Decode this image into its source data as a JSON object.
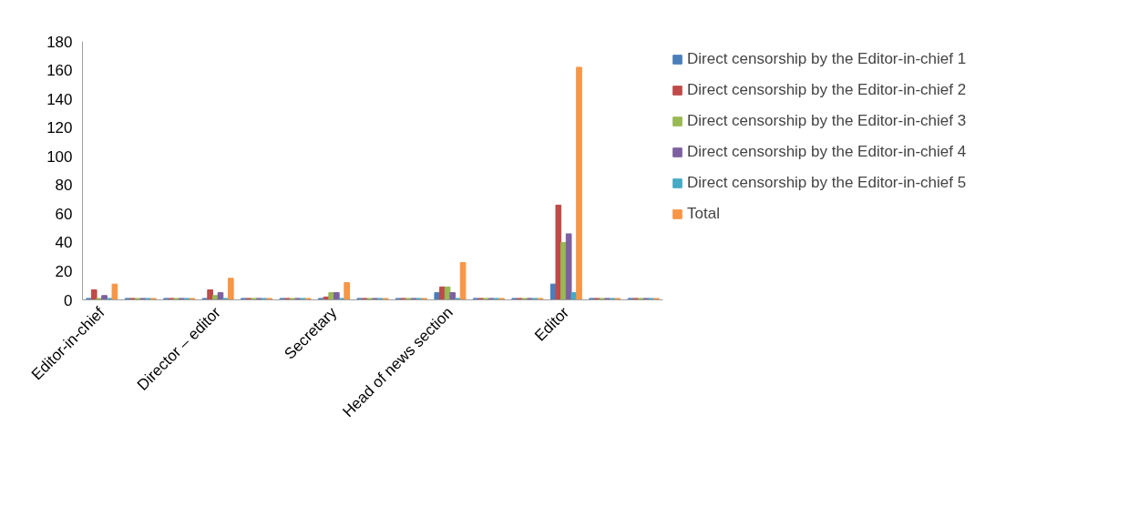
{
  "chart_data": {
    "type": "bar",
    "categories": [
      "Editor-in-chief",
      null,
      null,
      "Director – editor",
      null,
      null,
      "Secretary",
      null,
      null,
      "Head of news section",
      null,
      null,
      "Editor",
      null,
      null
    ],
    "series": [
      {
        "name": "Direct censorship by the Editor-in-chief 1",
        "color": "#4a7ebb",
        "values": [
          1,
          1,
          1,
          1,
          1,
          1,
          1,
          1,
          1,
          5,
          1,
          1,
          11,
          1,
          1
        ]
      },
      {
        "name": "Direct censorship by the Editor-in-chief 2",
        "color": "#be4b48",
        "values": [
          7,
          1,
          1,
          7,
          1,
          1,
          2,
          1,
          1,
          9,
          1,
          1,
          66,
          1,
          1
        ]
      },
      {
        "name": "Direct censorship by the Editor-in-chief 3",
        "color": "#98b954",
        "values": [
          1,
          1,
          1,
          3,
          1,
          1,
          5,
          1,
          1,
          9,
          1,
          1,
          40,
          1,
          1
        ]
      },
      {
        "name": "Direct censorship by the Editor-in-chief 4",
        "color": "#7d60a0",
        "values": [
          3,
          1,
          1,
          5,
          1,
          1,
          5,
          1,
          1,
          5,
          1,
          1,
          46,
          1,
          1
        ]
      },
      {
        "name": "Direct censorship by the Editor-in-chief 5",
        "color": "#46aac5",
        "values": [
          1,
          1,
          1,
          1,
          1,
          1,
          1,
          1,
          1,
          1,
          1,
          1,
          5,
          1,
          1
        ]
      },
      {
        "name": "Total",
        "color": "#f79646",
        "values": [
          11,
          1,
          1,
          15,
          1,
          1,
          12,
          1,
          1,
          26,
          1,
          1,
          162,
          1,
          1
        ]
      }
    ],
    "ylim": [
      0,
      180
    ],
    "yticks": [
      0,
      20,
      40,
      60,
      80,
      100,
      120,
      140,
      160,
      180
    ],
    "grid": false,
    "legend": "right"
  }
}
